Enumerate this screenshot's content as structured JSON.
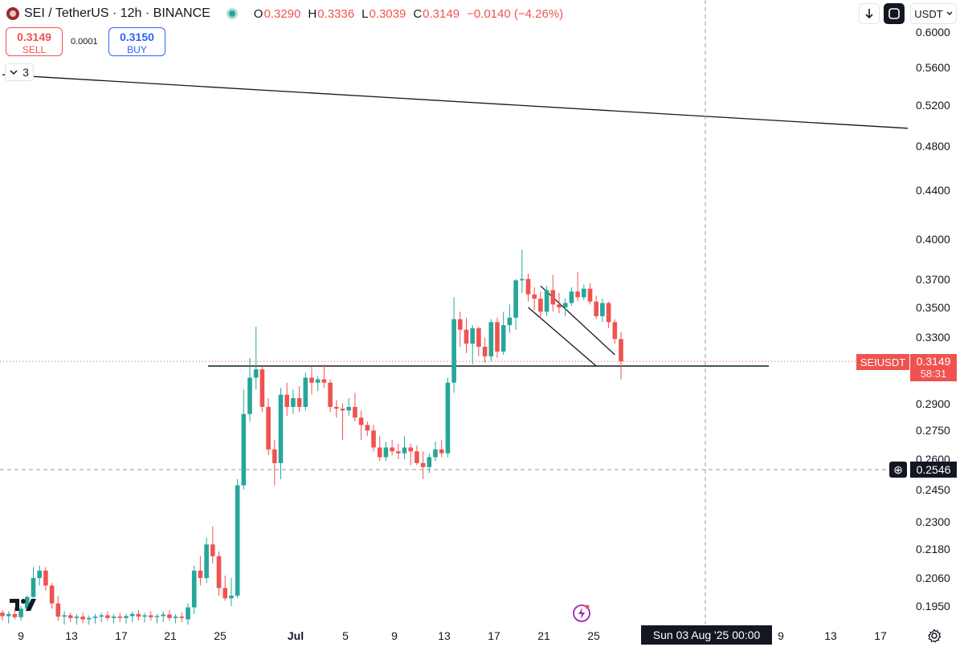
{
  "header": {
    "symbol": "SEI / TetherUS · 12h · BINANCE",
    "ohlc": [
      {
        "key": "O",
        "value": "0.3290"
      },
      {
        "key": "H",
        "value": "0.3336"
      },
      {
        "key": "L",
        "value": "0.3039"
      },
      {
        "key": "C",
        "value": "0.3149"
      },
      {
        "key": "",
        "value": "−0.0140 (−4.26%)"
      }
    ]
  },
  "trade": {
    "sell_price": "0.3149",
    "sell_label": "SELL",
    "spread": "0.0001",
    "buy_price": "0.3150",
    "buy_label": "BUY"
  },
  "indicator_toggle": {
    "count": "3"
  },
  "toolbar": {
    "currency": "USDT"
  },
  "y_axis": {
    "ticks": [
      {
        "label": "0.6000",
        "value": 0.6
      },
      {
        "label": "0.5600",
        "value": 0.56
      },
      {
        "label": "0.5200",
        "value": 0.52
      },
      {
        "label": "0.4800",
        "value": 0.48
      },
      {
        "label": "0.4400",
        "value": 0.44
      },
      {
        "label": "0.4000",
        "value": 0.4
      },
      {
        "label": "0.3700",
        "value": 0.37
      },
      {
        "label": "0.3500",
        "value": 0.35
      },
      {
        "label": "0.3300",
        "value": 0.33
      },
      {
        "label": "0.2900",
        "value": 0.29
      },
      {
        "label": "0.2750",
        "value": 0.275
      },
      {
        "label": "0.2600",
        "value": 0.26
      },
      {
        "label": "0.2450",
        "value": 0.245
      },
      {
        "label": "0.2300",
        "value": 0.23
      },
      {
        "label": "0.2180",
        "value": 0.218
      },
      {
        "label": "0.2060",
        "value": 0.206
      },
      {
        "label": "0.1950",
        "value": 0.195
      }
    ]
  },
  "price_tag": {
    "symbol": "SEIUSDT",
    "price": "0.3149",
    "countdown": "58:31"
  },
  "crosshair": {
    "price": "0.2546",
    "date": "Sun 03 Aug '25   00:00"
  },
  "x_axis": {
    "ticks": [
      {
        "label": "9",
        "bold": false
      },
      {
        "label": "13",
        "bold": false
      },
      {
        "label": "17",
        "bold": false
      },
      {
        "label": "21",
        "bold": false
      },
      {
        "label": "25",
        "bold": false
      },
      {
        "label": "Jul",
        "bold": true
      },
      {
        "label": "5",
        "bold": false
      },
      {
        "label": "9",
        "bold": false
      },
      {
        "label": "13",
        "bold": false
      },
      {
        "label": "17",
        "bold": false
      },
      {
        "label": "21",
        "bold": false
      },
      {
        "label": "25",
        "bold": false
      },
      {
        "label": "9",
        "bold": false
      },
      {
        "label": "13",
        "bold": false
      },
      {
        "label": "17",
        "bold": false
      }
    ]
  },
  "chart_data": {
    "type": "candlestick",
    "symbol": "SEI / TetherUS",
    "interval": "12h",
    "exchange": "BINANCE",
    "y_scale": "log",
    "ylim": [
      0.188,
      0.612
    ],
    "colors": {
      "up": "#26a69a",
      "down": "#ef5350"
    },
    "candles": [
      {
        "o": 0.1925,
        "h": 0.1935,
        "l": 0.1895,
        "c": 0.1912
      },
      {
        "o": 0.1912,
        "h": 0.193,
        "l": 0.1885,
        "c": 0.192
      },
      {
        "o": 0.192,
        "h": 0.1945,
        "l": 0.19,
        "c": 0.1908
      },
      {
        "o": 0.1908,
        "h": 0.195,
        "l": 0.1895,
        "c": 0.194
      },
      {
        "o": 0.194,
        "h": 0.199,
        "l": 0.193,
        "c": 0.1985
      },
      {
        "o": 0.1985,
        "h": 0.2105,
        "l": 0.198,
        "c": 0.206
      },
      {
        "o": 0.206,
        "h": 0.211,
        "l": 0.203,
        "c": 0.209
      },
      {
        "o": 0.209,
        "h": 0.2105,
        "l": 0.201,
        "c": 0.203
      },
      {
        "o": 0.203,
        "h": 0.204,
        "l": 0.194,
        "c": 0.196
      },
      {
        "o": 0.196,
        "h": 0.199,
        "l": 0.1895,
        "c": 0.191
      },
      {
        "o": 0.191,
        "h": 0.193,
        "l": 0.188,
        "c": 0.1915
      },
      {
        "o": 0.1915,
        "h": 0.1925,
        "l": 0.189,
        "c": 0.1905
      },
      {
        "o": 0.1905,
        "h": 0.192,
        "l": 0.188,
        "c": 0.191
      },
      {
        "o": 0.191,
        "h": 0.1925,
        "l": 0.1885,
        "c": 0.19
      },
      {
        "o": 0.19,
        "h": 0.1915,
        "l": 0.188,
        "c": 0.1905
      },
      {
        "o": 0.1905,
        "h": 0.192,
        "l": 0.1885,
        "c": 0.191
      },
      {
        "o": 0.191,
        "h": 0.1925,
        "l": 0.189,
        "c": 0.1915
      },
      {
        "o": 0.1915,
        "h": 0.193,
        "l": 0.1895,
        "c": 0.1905
      },
      {
        "o": 0.1905,
        "h": 0.192,
        "l": 0.1885,
        "c": 0.191
      },
      {
        "o": 0.191,
        "h": 0.1925,
        "l": 0.189,
        "c": 0.1905
      },
      {
        "o": 0.1905,
        "h": 0.192,
        "l": 0.1885,
        "c": 0.1912
      },
      {
        "o": 0.1912,
        "h": 0.193,
        "l": 0.189,
        "c": 0.192
      },
      {
        "o": 0.192,
        "h": 0.1935,
        "l": 0.1895,
        "c": 0.191
      },
      {
        "o": 0.191,
        "h": 0.1925,
        "l": 0.189,
        "c": 0.1915
      },
      {
        "o": 0.1915,
        "h": 0.193,
        "l": 0.1895,
        "c": 0.1908
      },
      {
        "o": 0.1908,
        "h": 0.192,
        "l": 0.1885,
        "c": 0.1912
      },
      {
        "o": 0.1912,
        "h": 0.193,
        "l": 0.189,
        "c": 0.1918
      },
      {
        "o": 0.1918,
        "h": 0.1935,
        "l": 0.1895,
        "c": 0.1905
      },
      {
        "o": 0.1905,
        "h": 0.192,
        "l": 0.1885,
        "c": 0.191
      },
      {
        "o": 0.191,
        "h": 0.1925,
        "l": 0.189,
        "c": 0.1905
      },
      {
        "o": 0.19,
        "h": 0.196,
        "l": 0.188,
        "c": 0.1945
      },
      {
        "o": 0.1945,
        "h": 0.211,
        "l": 0.192,
        "c": 0.209
      },
      {
        "o": 0.209,
        "h": 0.215,
        "l": 0.203,
        "c": 0.206
      },
      {
        "o": 0.206,
        "h": 0.223,
        "l": 0.204,
        "c": 0.22
      },
      {
        "o": 0.22,
        "h": 0.228,
        "l": 0.212,
        "c": 0.215
      },
      {
        "o": 0.215,
        "h": 0.217,
        "l": 0.199,
        "c": 0.202
      },
      {
        "o": 0.202,
        "h": 0.207,
        "l": 0.197,
        "c": 0.198
      },
      {
        "o": 0.198,
        "h": 0.206,
        "l": 0.195,
        "c": 0.199
      },
      {
        "o": 0.199,
        "h": 0.25,
        "l": 0.198,
        "c": 0.247
      },
      {
        "o": 0.247,
        "h": 0.298,
        "l": 0.245,
        "c": 0.284
      },
      {
        "o": 0.284,
        "h": 0.317,
        "l": 0.28,
        "c": 0.305
      },
      {
        "o": 0.305,
        "h": 0.337,
        "l": 0.298,
        "c": 0.31
      },
      {
        "o": 0.31,
        "h": 0.312,
        "l": 0.285,
        "c": 0.288
      },
      {
        "o": 0.288,
        "h": 0.293,
        "l": 0.262,
        "c": 0.265
      },
      {
        "o": 0.265,
        "h": 0.27,
        "l": 0.247,
        "c": 0.258
      },
      {
        "o": 0.258,
        "h": 0.299,
        "l": 0.25,
        "c": 0.295
      },
      {
        "o": 0.295,
        "h": 0.302,
        "l": 0.283,
        "c": 0.288
      },
      {
        "o": 0.288,
        "h": 0.298,
        "l": 0.284,
        "c": 0.293
      },
      {
        "o": 0.293,
        "h": 0.3,
        "l": 0.285,
        "c": 0.288
      },
      {
        "o": 0.288,
        "h": 0.308,
        "l": 0.286,
        "c": 0.305
      },
      {
        "o": 0.305,
        "h": 0.312,
        "l": 0.295,
        "c": 0.302
      },
      {
        "o": 0.302,
        "h": 0.306,
        "l": 0.297,
        "c": 0.304
      },
      {
        "o": 0.304,
        "h": 0.313,
        "l": 0.299,
        "c": 0.302
      },
      {
        "o": 0.302,
        "h": 0.304,
        "l": 0.285,
        "c": 0.288
      },
      {
        "o": 0.288,
        "h": 0.292,
        "l": 0.282,
        "c": 0.287
      },
      {
        "o": 0.287,
        "h": 0.29,
        "l": 0.27,
        "c": 0.286
      },
      {
        "o": 0.286,
        "h": 0.293,
        "l": 0.283,
        "c": 0.288
      },
      {
        "o": 0.288,
        "h": 0.296,
        "l": 0.28,
        "c": 0.282
      },
      {
        "o": 0.282,
        "h": 0.286,
        "l": 0.27,
        "c": 0.278
      },
      {
        "o": 0.278,
        "h": 0.28,
        "l": 0.272,
        "c": 0.275
      },
      {
        "o": 0.275,
        "h": 0.278,
        "l": 0.264,
        "c": 0.266
      },
      {
        "o": 0.266,
        "h": 0.272,
        "l": 0.259,
        "c": 0.261
      },
      {
        "o": 0.261,
        "h": 0.269,
        "l": 0.259,
        "c": 0.266
      },
      {
        "o": 0.266,
        "h": 0.27,
        "l": 0.262,
        "c": 0.264
      },
      {
        "o": 0.264,
        "h": 0.268,
        "l": 0.26,
        "c": 0.263
      },
      {
        "o": 0.263,
        "h": 0.272,
        "l": 0.26,
        "c": 0.266
      },
      {
        "o": 0.266,
        "h": 0.268,
        "l": 0.257,
        "c": 0.264
      },
      {
        "o": 0.264,
        "h": 0.267,
        "l": 0.257,
        "c": 0.258
      },
      {
        "o": 0.258,
        "h": 0.264,
        "l": 0.25,
        "c": 0.256
      },
      {
        "o": 0.256,
        "h": 0.263,
        "l": 0.253,
        "c": 0.261
      },
      {
        "o": 0.261,
        "h": 0.269,
        "l": 0.259,
        "c": 0.265
      },
      {
        "o": 0.265,
        "h": 0.27,
        "l": 0.261,
        "c": 0.263
      },
      {
        "o": 0.263,
        "h": 0.305,
        "l": 0.261,
        "c": 0.302
      },
      {
        "o": 0.302,
        "h": 0.357,
        "l": 0.296,
        "c": 0.342
      },
      {
        "o": 0.342,
        "h": 0.347,
        "l": 0.324,
        "c": 0.335
      },
      {
        "o": 0.335,
        "h": 0.343,
        "l": 0.32,
        "c": 0.326
      },
      {
        "o": 0.326,
        "h": 0.338,
        "l": 0.313,
        "c": 0.336
      },
      {
        "o": 0.336,
        "h": 0.337,
        "l": 0.318,
        "c": 0.324
      },
      {
        "o": 0.324,
        "h": 0.33,
        "l": 0.314,
        "c": 0.318
      },
      {
        "o": 0.318,
        "h": 0.342,
        "l": 0.315,
        "c": 0.34
      },
      {
        "o": 0.34,
        "h": 0.343,
        "l": 0.317,
        "c": 0.321
      },
      {
        "o": 0.321,
        "h": 0.347,
        "l": 0.319,
        "c": 0.338
      },
      {
        "o": 0.338,
        "h": 0.352,
        "l": 0.333,
        "c": 0.343
      },
      {
        "o": 0.343,
        "h": 0.37,
        "l": 0.335,
        "c": 0.369
      },
      {
        "o": 0.369,
        "h": 0.392,
        "l": 0.36,
        "c": 0.37
      },
      {
        "o": 0.37,
        "h": 0.374,
        "l": 0.354,
        "c": 0.359
      },
      {
        "o": 0.359,
        "h": 0.364,
        "l": 0.348,
        "c": 0.356
      },
      {
        "o": 0.356,
        "h": 0.361,
        "l": 0.342,
        "c": 0.347
      },
      {
        "o": 0.347,
        "h": 0.365,
        "l": 0.344,
        "c": 0.362
      },
      {
        "o": 0.362,
        "h": 0.373,
        "l": 0.347,
        "c": 0.352
      },
      {
        "o": 0.352,
        "h": 0.36,
        "l": 0.346,
        "c": 0.35
      },
      {
        "o": 0.35,
        "h": 0.356,
        "l": 0.344,
        "c": 0.353
      },
      {
        "o": 0.353,
        "h": 0.364,
        "l": 0.351,
        "c": 0.361
      },
      {
        "o": 0.361,
        "h": 0.375,
        "l": 0.354,
        "c": 0.357
      },
      {
        "o": 0.357,
        "h": 0.366,
        "l": 0.355,
        "c": 0.363
      },
      {
        "o": 0.363,
        "h": 0.367,
        "l": 0.352,
        "c": 0.354
      },
      {
        "o": 0.354,
        "h": 0.358,
        "l": 0.342,
        "c": 0.344
      },
      {
        "o": 0.344,
        "h": 0.356,
        "l": 0.34,
        "c": 0.353
      },
      {
        "o": 0.353,
        "h": 0.354,
        "l": 0.336,
        "c": 0.34
      },
      {
        "o": 0.34,
        "h": 0.342,
        "l": 0.326,
        "c": 0.329
      },
      {
        "o": 0.329,
        "h": 0.3336,
        "l": 0.3039,
        "c": 0.3149
      }
    ],
    "levels": [
      {
        "kind": "horizontal_ray",
        "price": 0.312
      }
    ],
    "trendlines": [
      {
        "t1": 0,
        "p1": 0.552,
        "t2": 187,
        "p2": 0.497
      },
      {
        "t1": 87,
        "p1": 0.365,
        "t2": 99,
        "p2": 0.319
      },
      {
        "t1": 85,
        "p1": 0.35,
        "t2": 96,
        "p2": 0.312
      }
    ],
    "last_price_line": 0.3149
  }
}
